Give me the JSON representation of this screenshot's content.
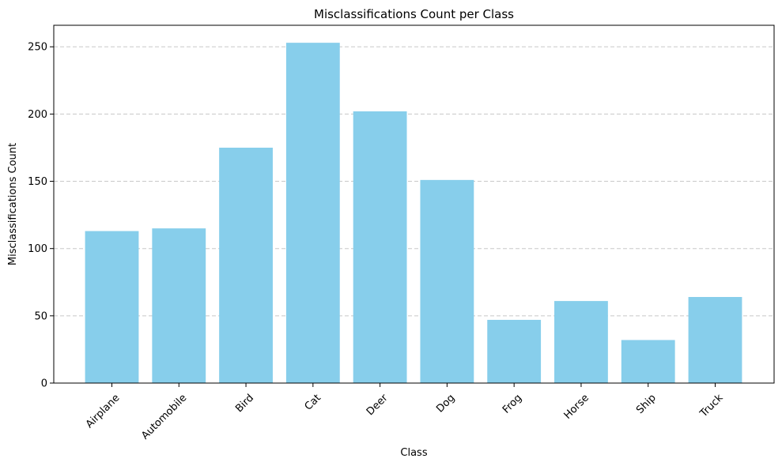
{
  "chart_data": {
    "type": "bar",
    "title": "Misclassifications Count per Class",
    "xlabel": "Class",
    "ylabel": "Misclassifications Count",
    "categories": [
      "Airplane",
      "Automobile",
      "Bird",
      "Cat",
      "Deer",
      "Dog",
      "Frog",
      "Horse",
      "Ship",
      "Truck"
    ],
    "values": [
      113,
      115,
      175,
      253,
      202,
      151,
      47,
      61,
      32,
      64
    ],
    "ylim": [
      0,
      266
    ],
    "yticks": [
      0,
      50,
      100,
      150,
      200,
      250
    ],
    "xtick_rotation_deg": 45,
    "grid": "y-axis, dashed",
    "bar_color": "#87ceeb",
    "grid_color": "#c8c8c8"
  }
}
